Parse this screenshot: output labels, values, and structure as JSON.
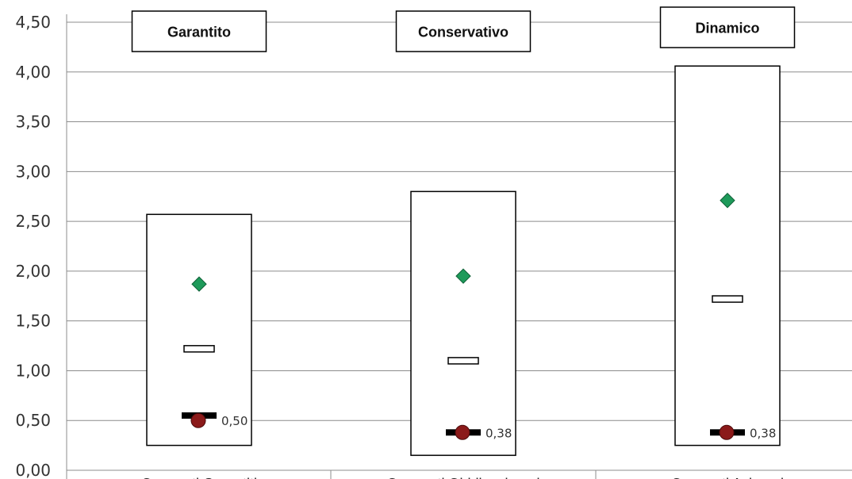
{
  "chart_data": {
    "type": "box",
    "ylim": [
      0,
      4.5
    ],
    "y_ticks": [
      "0,00",
      "0,50",
      "1,00",
      "1,50",
      "2,00",
      "2,50",
      "3,00",
      "3,50",
      "4,00",
      "4,50"
    ],
    "y_tick_values": [
      0,
      0.5,
      1.0,
      1.5,
      2.0,
      2.5,
      3.0,
      3.5,
      4.0,
      4.5
    ],
    "grid": true,
    "panels": [
      {
        "title": "Garantito",
        "category_label": "Comparti Garantiti",
        "box_low": 0.25,
        "box_high": 2.57,
        "median_marker": 1.22,
        "diamond_value": 1.87,
        "black_bar_value": 0.55,
        "dot_value": 0.5,
        "dot_label": "0,50"
      },
      {
        "title": "Conservativo",
        "category_label": "Comparti Obbligazionari",
        "box_low": 0.15,
        "box_high": 2.8,
        "median_marker": 1.1,
        "diamond_value": 1.95,
        "black_bar_value": 0.38,
        "dot_value": 0.38,
        "dot_label": "0,38"
      },
      {
        "title": "Dinamico",
        "category_label": "Comparti Azionari",
        "box_low": 0.25,
        "box_high": 4.06,
        "median_marker": 1.72,
        "diamond_value": 2.71,
        "black_bar_value": 0.38,
        "dot_value": 0.38,
        "dot_label": "0,38"
      }
    ],
    "colors": {
      "diamond": "#1e9a5a",
      "dot": "#8b1a1a",
      "bar": "#000000",
      "grid": "#8c8c8c",
      "box_stroke": "#000000"
    }
  }
}
